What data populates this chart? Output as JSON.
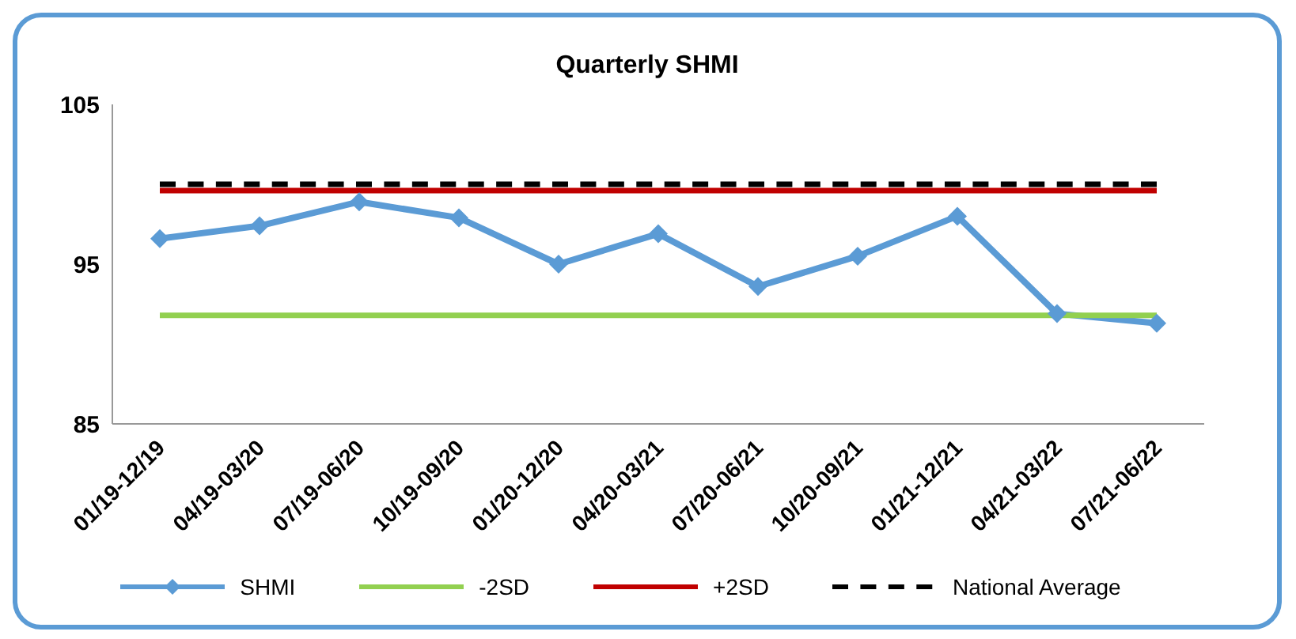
{
  "chart_data": {
    "type": "line",
    "title": "Quarterly SHMI",
    "categories": [
      "01/19-12/19",
      "04/19-03/20",
      "07/19-06/20",
      "10/19-09/20",
      "01/20-12/20",
      "04/20-03/21",
      "07/20-06/21",
      "10/20-09/21",
      "01/21-12/21",
      "04/21-03/22",
      "07/21-06/22"
    ],
    "series": [
      {
        "name": "SHMI",
        "color": "#5b9bd5",
        "marker": "diamond",
        "line_style": "solid",
        "values": [
          96.6,
          97.4,
          98.9,
          97.9,
          95.0,
          96.9,
          93.6,
          95.5,
          98.0,
          91.9,
          91.3
        ]
      },
      {
        "name": "-2SD",
        "color": "#92d050",
        "marker": "none",
        "line_style": "solid",
        "values": [
          91.8,
          91.8,
          91.8,
          91.8,
          91.8,
          91.8,
          91.8,
          91.8,
          91.8,
          91.8,
          91.8
        ]
      },
      {
        "name": "+2SD",
        "color": "#c00000",
        "marker": "none",
        "line_style": "solid",
        "values": [
          99.6,
          99.6,
          99.6,
          99.6,
          99.6,
          99.6,
          99.6,
          99.6,
          99.6,
          99.6,
          99.6
        ]
      },
      {
        "name": "National Average",
        "color": "#000000",
        "marker": "none",
        "line_style": "dashed",
        "values": [
          100,
          100,
          100,
          100,
          100,
          100,
          100,
          100,
          100,
          100,
          100
        ]
      }
    ],
    "ylim": [
      85,
      105
    ],
    "yticks": [
      85,
      95,
      105
    ],
    "grid": false,
    "legend": "bottom"
  }
}
